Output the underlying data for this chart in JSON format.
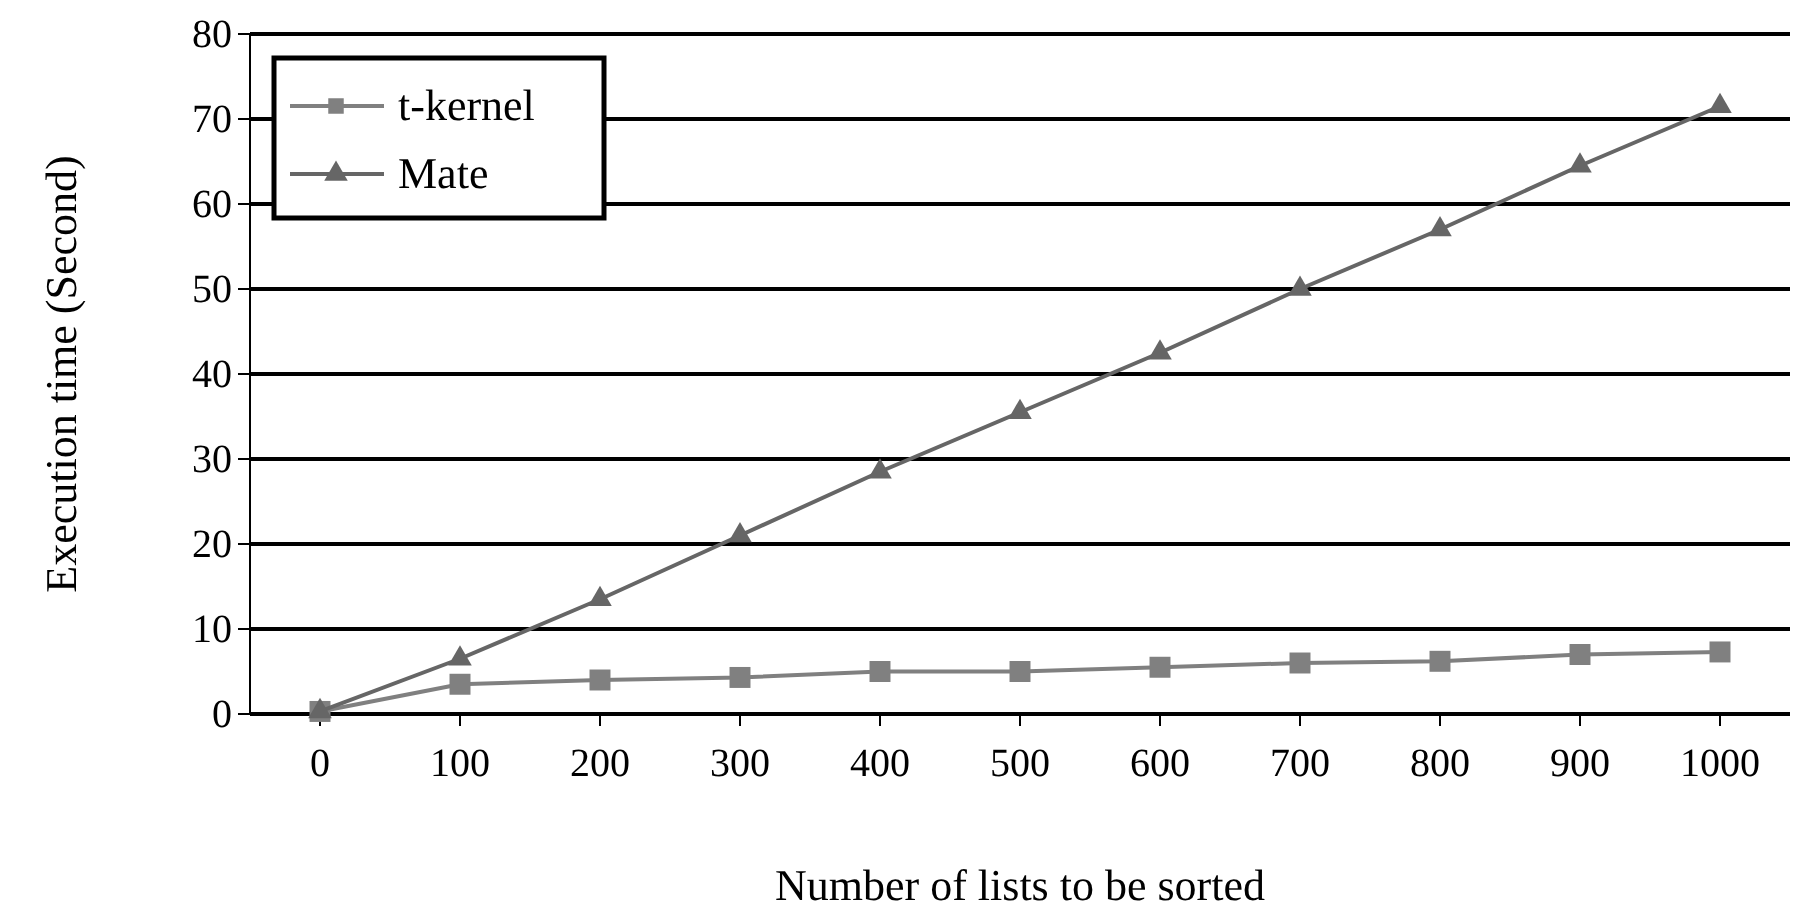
{
  "chart_data": {
    "type": "line",
    "xlabel": "Number of lists to be sorted",
    "ylabel": "Execution time (Second)",
    "categories": [
      "0",
      "100",
      "200",
      "300",
      "400",
      "500",
      "600",
      "700",
      "800",
      "900",
      "1000"
    ],
    "series": [
      {
        "name": "t-kernel",
        "color": "#808080",
        "marker": "square",
        "values": [
          0.3,
          3.5,
          4,
          4.3,
          5,
          5,
          5.5,
          6,
          6.2,
          7,
          7.3
        ]
      },
      {
        "name": "Mate",
        "color": "#666666",
        "marker": "triangle",
        "values": [
          0.3,
          6.5,
          13.5,
          21,
          28.5,
          35.5,
          42.5,
          50,
          57,
          64.5,
          71.5
        ]
      }
    ],
    "ylim": [
      0,
      80
    ],
    "yticks": [
      0,
      10,
      20,
      30,
      40,
      50,
      60,
      70,
      80
    ],
    "grid": "y",
    "legend": "top left",
    "line_style": "solid"
  }
}
